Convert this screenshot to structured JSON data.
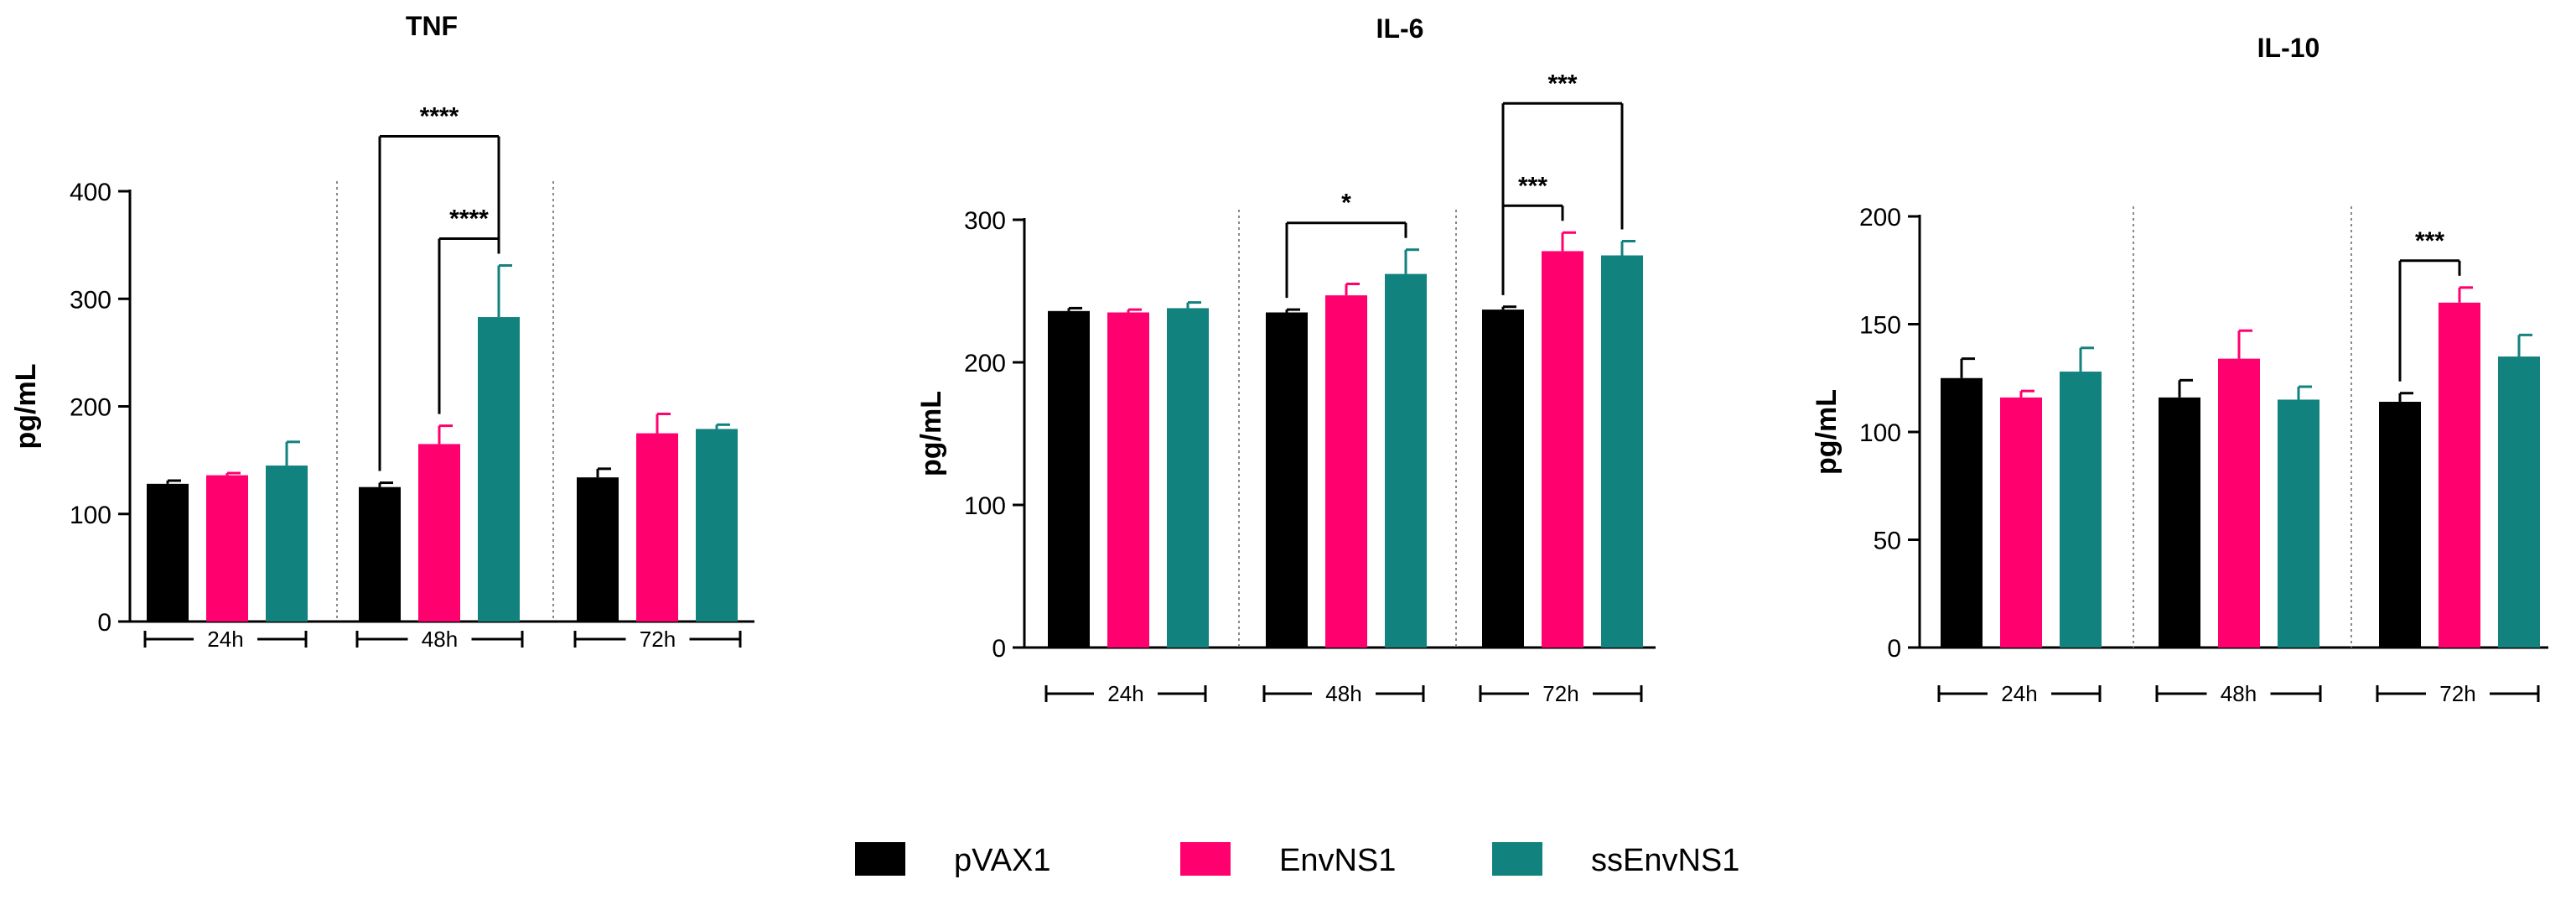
{
  "legend": [
    {
      "label": "pVAX1",
      "color": "#000000"
    },
    {
      "label": "EnvNS1",
      "color": "#ff006e"
    },
    {
      "label": "ssEnvNS1",
      "color": "#12827f"
    }
  ],
  "chart_data": [
    {
      "type": "bar",
      "title": "TNF",
      "ylabel": "pg/mL",
      "ylim": [
        0,
        400
      ],
      "yticks": [
        0,
        100,
        200,
        300,
        400
      ],
      "categories": [
        "24h",
        "48h",
        "72h"
      ],
      "series": [
        {
          "name": "pVAX1",
          "values": [
            128,
            125,
            134
          ],
          "errors": [
            3,
            4,
            8
          ]
        },
        {
          "name": "EnvNS1",
          "values": [
            136,
            165,
            175
          ],
          "errors": [
            2,
            17,
            18
          ]
        },
        {
          "name": "ssEnvNS1",
          "values": [
            145,
            283,
            179
          ],
          "errors": [
            22,
            48,
            4
          ]
        }
      ],
      "significance": [
        {
          "group": 1,
          "from": 0,
          "to": 2,
          "label": "****"
        },
        {
          "group": 1,
          "from": 1,
          "to": 2,
          "label": "****"
        }
      ]
    },
    {
      "type": "bar",
      "title": "IL-6",
      "ylabel": "pg/mL",
      "ylim": [
        0,
        300
      ],
      "yticks": [
        0,
        100,
        200,
        300
      ],
      "categories": [
        "24h",
        "48h",
        "72h"
      ],
      "series": [
        {
          "name": "pVAX1",
          "values": [
            236,
            235,
            237
          ],
          "errors": [
            2,
            2,
            2
          ]
        },
        {
          "name": "EnvNS1",
          "values": [
            235,
            247,
            278
          ],
          "errors": [
            2,
            8,
            13
          ]
        },
        {
          "name": "ssEnvNS1",
          "values": [
            238,
            262,
            275
          ],
          "errors": [
            4,
            17,
            10
          ]
        }
      ],
      "significance": [
        {
          "group": 1,
          "from": 0,
          "to": 2,
          "label": "*"
        },
        {
          "group": 2,
          "from": 0,
          "to": 1,
          "label": "***"
        },
        {
          "group": 2,
          "from": 0,
          "to": 2,
          "label": "***"
        }
      ]
    },
    {
      "type": "bar",
      "title": "IL-10",
      "ylabel": "pg/mL",
      "ylim": [
        0,
        200
      ],
      "yticks": [
        0,
        50,
        100,
        150,
        200
      ],
      "categories": [
        "24h",
        "48h",
        "72h"
      ],
      "series": [
        {
          "name": "pVAX1",
          "values": [
            125,
            116,
            114
          ],
          "errors": [
            9,
            8,
            4
          ]
        },
        {
          "name": "EnvNS1",
          "values": [
            116,
            134,
            160
          ],
          "errors": [
            3,
            13,
            7
          ]
        },
        {
          "name": "ssEnvNS1",
          "values": [
            128,
            115,
            135
          ],
          "errors": [
            11,
            6,
            10
          ]
        }
      ],
      "significance": [
        {
          "group": 2,
          "from": 0,
          "to": 1,
          "label": "***"
        }
      ]
    }
  ]
}
